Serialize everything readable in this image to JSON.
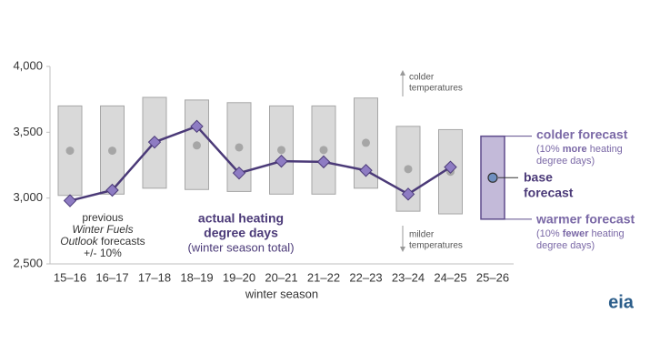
{
  "chart_data": {
    "type": "range",
    "x_label": "winter season",
    "categories": [
      "15–16",
      "16–17",
      "17–18",
      "18–19",
      "19–20",
      "20–21",
      "21–22",
      "22–23",
      "23–24",
      "24–25",
      "25–26"
    ],
    "ylim": [
      2500,
      4000
    ],
    "yticks": [
      {
        "value": 2500,
        "label": "2,500"
      },
      {
        "value": 3000,
        "label": "3,000"
      },
      {
        "value": 3500,
        "label": "3,500"
      },
      {
        "value": 4000,
        "label": "4,000"
      }
    ],
    "previous_forecast": {
      "color": "#d9d9d9",
      "dot_color": "#a6a6a6",
      "low": [
        3020,
        3030,
        3075,
        3065,
        3050,
        3030,
        3030,
        3075,
        2900,
        2880,
        null
      ],
      "mid": [
        3360,
        3360,
        3420,
        3400,
        3385,
        3365,
        3365,
        3420,
        3220,
        3200,
        null
      ],
      "high": [
        3700,
        3700,
        3765,
        3745,
        3725,
        3700,
        3700,
        3760,
        3545,
        3520,
        null
      ]
    },
    "actual": {
      "color": "#4b3a78",
      "marker_color": "#8e7cc3",
      "values": [
        2980,
        3060,
        3425,
        3545,
        3190,
        3280,
        3275,
        3210,
        3030,
        3235,
        null
      ]
    },
    "forecast": {
      "color": "#c3bad9",
      "stroke": "#5e4b8b",
      "base_color": "#6f8fc0",
      "low": 2840,
      "base": 3155,
      "high": 3470
    },
    "annotations": {
      "previous": [
        "previous",
        "Winter Fuels",
        [
          "Outlook",
          " forecasts"
        ],
        "+/- 10%"
      ],
      "actual": [
        "actual heating",
        "degree days",
        "(winter season total)"
      ],
      "colder_temps": [
        "colder",
        "temperatures"
      ],
      "milder_temps": [
        "milder",
        "temperatures"
      ],
      "colder_forecast": {
        "title": "colder forecast",
        "note": [
          [
            "(10% ",
            "more",
            " heating"
          ],
          "degree days)"
        ]
      },
      "base_forecast": [
        "base",
        "forecast"
      ],
      "warmer_forecast": {
        "title": "warmer forecast",
        "note": [
          [
            "(10% ",
            "fewer",
            " heating"
          ],
          "degree days)"
        ]
      }
    },
    "logo": "eia"
  }
}
